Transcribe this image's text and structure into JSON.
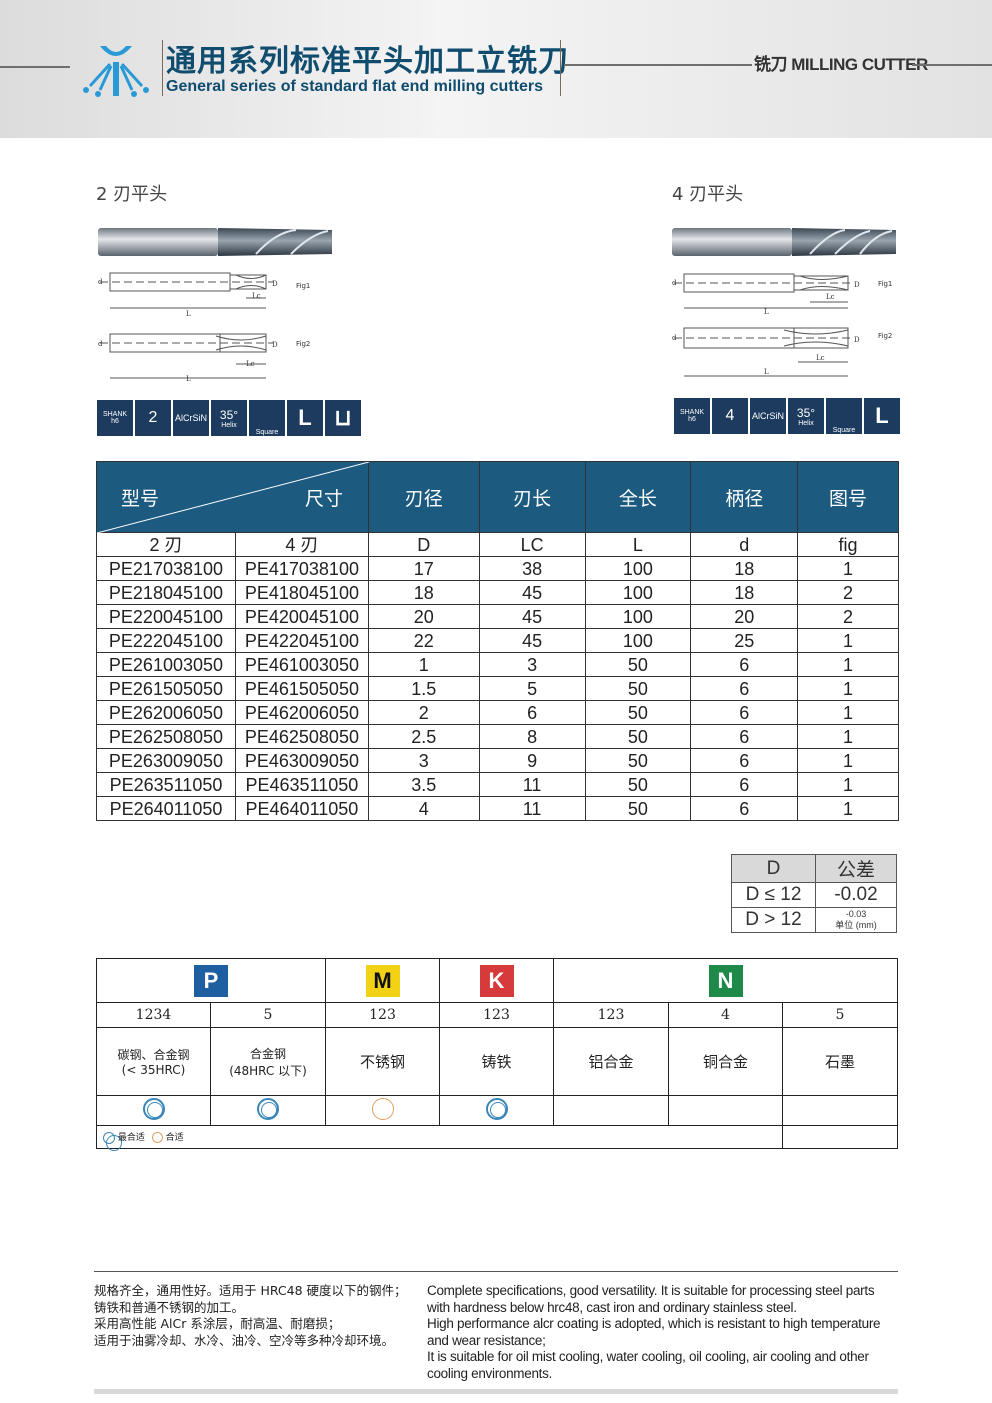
{
  "header": {
    "title_cn": "通用系列标准平头加工立铣刀",
    "title_en": "General series of standard flat end milling cutters",
    "category": "铣刀 MILLING CUTTER"
  },
  "left_product": {
    "title": "2 刃平头",
    "fig1": "Fig1",
    "fig2": "Fig2",
    "icons": {
      "shank": "SHANK",
      "h6": "h6",
      "flutes": "2",
      "coating": "AlCrSiN",
      "helix_angle": "35°",
      "helix": "Helix",
      "square": "Square"
    }
  },
  "right_product": {
    "title": "4 刃平头",
    "fig1": "Fig1",
    "fig2": "Fig2",
    "icons": {
      "shank": "SHANK",
      "h6": "h6",
      "flutes": "4",
      "coating": "AlCrSiN",
      "helix_angle": "35°",
      "helix": "Helix",
      "square": "Square"
    }
  },
  "spec_table": {
    "header": {
      "model": "型号",
      "size": "尺寸",
      "cols": [
        "刃径",
        "刃长",
        "全长",
        "柄径",
        "图号"
      ]
    },
    "subheader": [
      "2 刃",
      "4 刃",
      "D",
      "LC",
      "L",
      "d",
      "fig"
    ],
    "rows": [
      [
        "PE217038100",
        "PE417038100",
        "17",
        "38",
        "100",
        "18",
        "1"
      ],
      [
        "PE218045100",
        "PE418045100",
        "18",
        "45",
        "100",
        "18",
        "2"
      ],
      [
        "PE220045100",
        "PE420045100",
        "20",
        "45",
        "100",
        "20",
        "2"
      ],
      [
        "PE222045100",
        "PE422045100",
        "22",
        "45",
        "100",
        "25",
        "1"
      ],
      [
        "PE261003050",
        "PE461003050",
        "1",
        "3",
        "50",
        "6",
        "1"
      ],
      [
        "PE261505050",
        "PE461505050",
        "1.5",
        "5",
        "50",
        "6",
        "1"
      ],
      [
        "PE262006050",
        "PE462006050",
        "2",
        "6",
        "50",
        "6",
        "1"
      ],
      [
        "PE262508050",
        "PE462508050",
        "2.5",
        "8",
        "50",
        "6",
        "1"
      ],
      [
        "PE263009050",
        "PE463009050",
        "3",
        "9",
        "50",
        "6",
        "1"
      ],
      [
        "PE263511050",
        "PE463511050",
        "3.5",
        "11",
        "50",
        "6",
        "1"
      ],
      [
        "PE264011050",
        "PE464011050",
        "4",
        "11",
        "50",
        "6",
        "1"
      ]
    ]
  },
  "tolerance": {
    "head": [
      "D",
      "公差"
    ],
    "rows": [
      [
        "D ≤ 12",
        "-0.02"
      ],
      [
        "D > 12",
        "-0.03"
      ]
    ],
    "unit": "单位 (mm)"
  },
  "materials": {
    "groups": [
      {
        "letter": "P",
        "color": "#1d5fa0"
      },
      {
        "letter": "M",
        "color": "#f2d214"
      },
      {
        "letter": "K",
        "color": "#d63a3a"
      },
      {
        "letter": "N",
        "color": "#1e8a4a"
      }
    ],
    "numbers": [
      "1234",
      "5",
      "123",
      "123",
      "123",
      "4",
      "5"
    ],
    "names": [
      "碳钢、合金钢\n(< 35HRC)",
      "合金钢\n(48HRC 以下)",
      "不锈钢",
      "铸铁",
      "铝合金",
      "铜合金",
      "石墨"
    ],
    "suitability": [
      "best",
      "best",
      "good",
      "best",
      "",
      "",
      ""
    ],
    "legend": {
      "best": "最合适",
      "good": "合适"
    }
  },
  "footer": {
    "cn": [
      "规格齐全，通用性好。适用于 HRC48 硬度以下的钢件；",
      "铸铁和普通不锈钢的加工。",
      "采用高性能 AlCr 系涂层，耐高温、耐磨损；",
      "适用于油雾冷却、水冷、油冷、空冷等多种冷却环境。"
    ],
    "en": [
      "Complete specifications, good versatility. It is suitable for processing steel parts",
      "with hardness below hrc48, cast iron and ordinary stainless steel.",
      "High performance alcr coating is adopted, which is resistant to high temperature",
      "and wear resistance;",
      "It is suitable for oil mist cooling, water cooling, oil cooling, air cooling and other",
      "cooling environments."
    ]
  }
}
